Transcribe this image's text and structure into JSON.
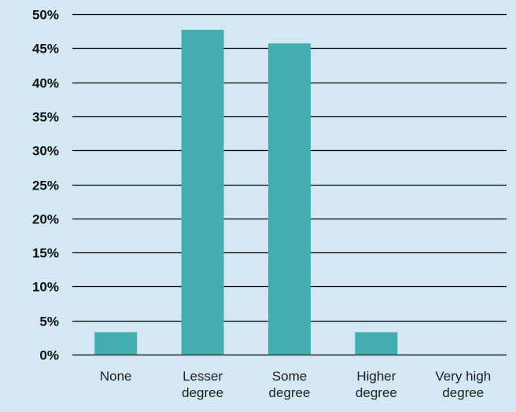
{
  "colors": {
    "background": "#d3e8f2",
    "bar": "#45aeb1",
    "gridline": "#000000"
  },
  "chart_data": {
    "type": "bar",
    "title": "",
    "xlabel": "",
    "ylabel": "",
    "categories": [
      "None",
      "Lesser degree",
      "Some degree",
      "Higher degree",
      "Very high degree"
    ],
    "category_label_lines": [
      [
        "None"
      ],
      [
        "Lesser",
        "degree"
      ],
      [
        "Some",
        "degree"
      ],
      [
        "Higher",
        "degree"
      ],
      [
        "Very high",
        "degree"
      ]
    ],
    "values": [
      0.033,
      0.477,
      0.457,
      0.033,
      0.0
    ],
    "ylim": [
      0,
      0.5
    ],
    "yticks": [
      0,
      0.05,
      0.1,
      0.15,
      0.2,
      0.25,
      0.3,
      0.35,
      0.4,
      0.45,
      0.5
    ],
    "ytick_labels": [
      "0%",
      "5%",
      "10%",
      "15%",
      "20%",
      "25%",
      "30%",
      "35%",
      "40%",
      "45%",
      "50%"
    ],
    "grid": true,
    "legend": "none"
  }
}
